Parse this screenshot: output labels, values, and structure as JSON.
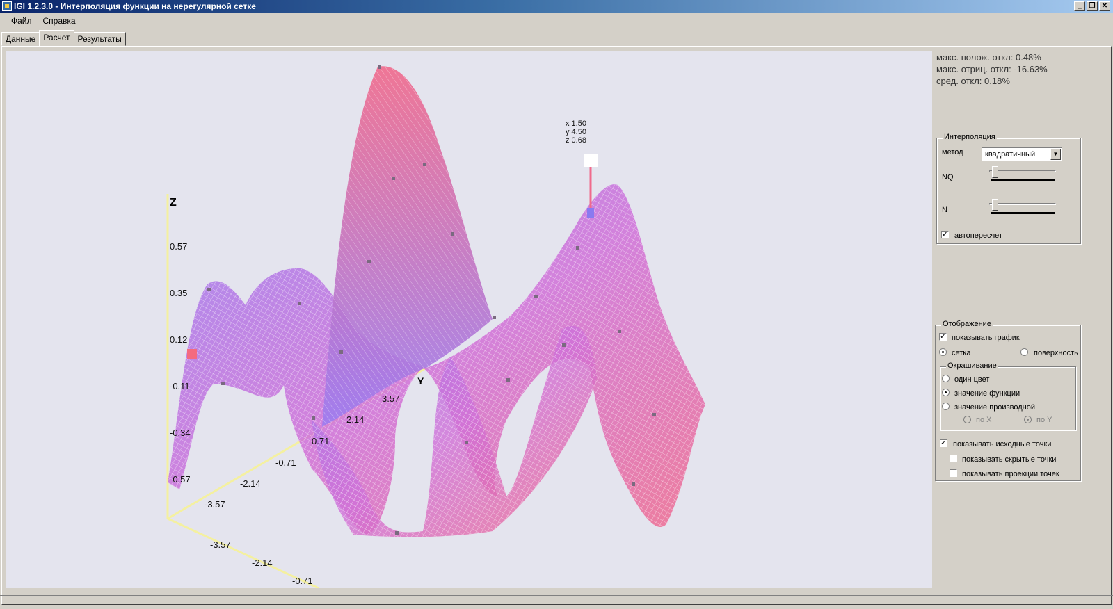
{
  "window": {
    "title": "IGI 1.2.3.0 - Интерполяция функции на нерегулярной сетке",
    "buttons": [
      "_",
      "❐",
      "✕"
    ]
  },
  "menu": {
    "items": [
      "Файл",
      "Справка"
    ]
  },
  "tabs": [
    {
      "label": "Данные",
      "active": false
    },
    {
      "label": "Расчет",
      "active": true
    },
    {
      "label": "Результаты",
      "active": false
    }
  ],
  "plot": {
    "z_axis": {
      "label": "Z",
      "ticks": [
        "0.57",
        "0.35",
        "0.12",
        "-0.11",
        "-0.34",
        "-0.57"
      ]
    },
    "y_axis": {
      "label": "Y",
      "ticks": [
        "-3.57",
        "-2.14",
        "-0.71",
        "0.71",
        "2.14",
        "3.57"
      ]
    },
    "x_axis": {
      "ticks": [
        "-3.57",
        "-2.14",
        "-0.71"
      ]
    },
    "tooltip": {
      "x": "x 1.50",
      "y": "y 4.50",
      "z": "z 0.68"
    },
    "mesh_colors": {
      "high": "#f06a8c",
      "low": "#9b7cf0",
      "mid": "#d070d8"
    }
  },
  "stats": {
    "max_pos": "макс. полож. откл: 0.48%",
    "max_neg": "макс. отриц. откл: -16.63%",
    "avg": "сред. откл: 0.18%"
  },
  "interp": {
    "title": "Интерполяция",
    "method_label": "метод",
    "method_value": "квадратичный",
    "nq_label": "NQ",
    "n_label": "N",
    "nq_level": 0.02,
    "n_level": 0.02,
    "auto_label": "автопересчет",
    "auto_checked": true
  },
  "display": {
    "title": "Отображение",
    "show_graph": "показывать график",
    "mesh": "сетка",
    "surface": "поверхность",
    "coloring_title": "Окрашивание",
    "one_color": "один цвет",
    "func_value": "значение функции",
    "deriv_value": "значение производной",
    "by_x": "по X",
    "by_y": "по Y",
    "show_src_points": "показывать исходные точки",
    "show_hidden_points": "показывать скрытые точки",
    "show_projections": "показывать проекции точек"
  }
}
